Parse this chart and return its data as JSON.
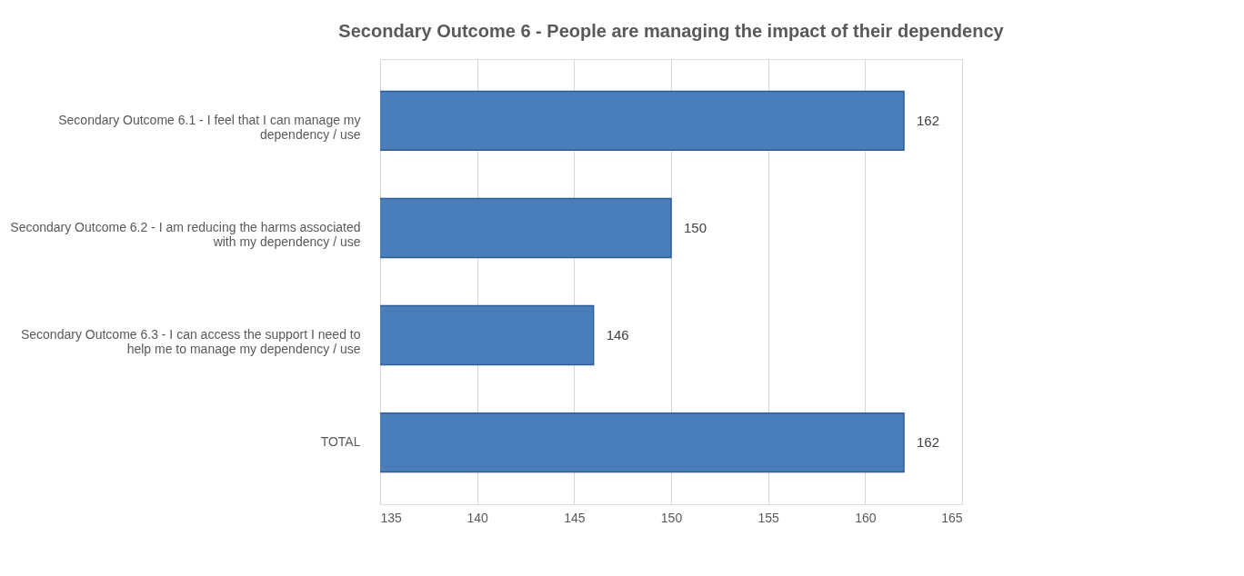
{
  "chart_data": {
    "type": "bar",
    "orientation": "horizontal",
    "title": "Secondary Outcome 6 - People are managing the impact of their dependency",
    "categories": [
      "Secondary Outcome 6.1 - I feel that I can manage my dependency / use",
      "Secondary Outcome 6.2 - I am reducing the harms associated with my dependency / use",
      "Secondary Outcome 6.3 - I can access the support I need to help me to manage my dependency / use",
      "TOTAL"
    ],
    "values": [
      162,
      150,
      146,
      162
    ],
    "color": "#4a7ebb",
    "xlim": [
      135,
      165
    ],
    "xticks": [
      135,
      140,
      145,
      150,
      155,
      160,
      165
    ],
    "grid": "x",
    "data_labels": true
  }
}
